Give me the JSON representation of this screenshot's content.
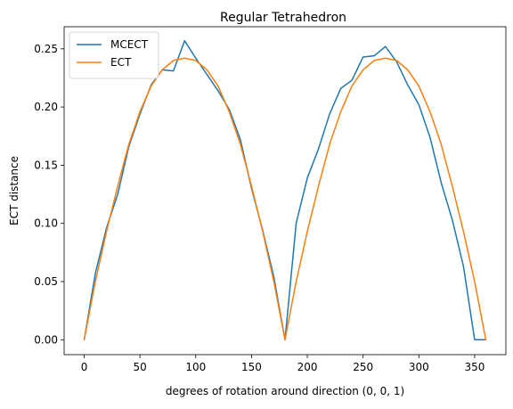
{
  "chart_data": {
    "type": "line",
    "title": "Regular Tetrahedron",
    "xlabel": "degrees of rotation around direction (0, 0, 1)",
    "ylabel": "ECT distance",
    "xlim": [
      -18,
      378
    ],
    "ylim": [
      -0.0128,
      0.269
    ],
    "x_ticks": [
      0,
      50,
      100,
      150,
      200,
      250,
      300,
      350
    ],
    "y_ticks": [
      0.0,
      0.05,
      0.1,
      0.15,
      0.2,
      0.25
    ],
    "x_tick_labels": [
      "0",
      "50",
      "100",
      "150",
      "200",
      "250",
      "300",
      "350"
    ],
    "y_tick_labels": [
      "0.00",
      "0.05",
      "0.10",
      "0.15",
      "0.20",
      "0.25"
    ],
    "legend_position": "top-left",
    "grid": false,
    "x": [
      0,
      10,
      20,
      30,
      40,
      50,
      60,
      70,
      80,
      90,
      100,
      110,
      120,
      130,
      140,
      150,
      160,
      170,
      180,
      190,
      200,
      210,
      220,
      230,
      240,
      250,
      260,
      270,
      280,
      290,
      300,
      310,
      320,
      330,
      340,
      350,
      360
    ],
    "series": [
      {
        "name": "MCECT",
        "color": "#1f77b4",
        "values": [
          0.0,
          0.057,
          0.096,
          0.125,
          0.166,
          0.194,
          0.219,
          0.232,
          0.231,
          0.257,
          0.242,
          0.228,
          0.214,
          0.198,
          0.172,
          0.13,
          0.094,
          0.054,
          0.0,
          0.1,
          0.139,
          0.164,
          0.194,
          0.216,
          0.223,
          0.243,
          0.244,
          0.252,
          0.239,
          0.219,
          0.202,
          0.174,
          0.135,
          0.103,
          0.063,
          0.0,
          0.0
        ]
      },
      {
        "name": "ECT",
        "color": "#ff7f0e",
        "values": [
          0.0,
          0.05,
          0.093,
          0.132,
          0.168,
          0.196,
          0.218,
          0.232,
          0.24,
          0.242,
          0.24,
          0.232,
          0.218,
          0.196,
          0.168,
          0.132,
          0.093,
          0.05,
          0.0,
          0.05,
          0.093,
          0.132,
          0.168,
          0.196,
          0.218,
          0.232,
          0.24,
          0.242,
          0.24,
          0.232,
          0.218,
          0.196,
          0.168,
          0.132,
          0.093,
          0.05,
          0.0
        ]
      }
    ]
  }
}
